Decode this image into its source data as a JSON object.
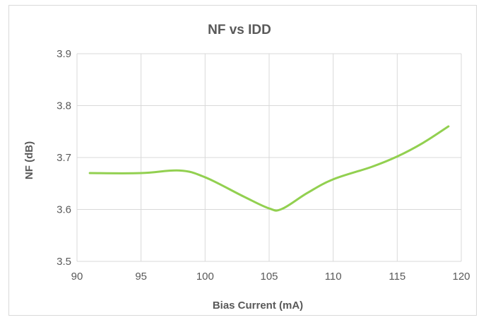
{
  "chart_data": {
    "type": "line",
    "title": "NF vs IDD",
    "xlabel": "Bias Current (mA)",
    "ylabel": "NF (dB)",
    "xlim": [
      90,
      120
    ],
    "ylim": [
      3.5,
      3.9
    ],
    "x_ticks": [
      90,
      95,
      100,
      105,
      110,
      115,
      120
    ],
    "y_ticks": [
      3.5,
      3.6,
      3.7,
      3.8,
      3.9
    ],
    "x_tick_labels": [
      "90",
      "95",
      "100",
      "105",
      "110",
      "115",
      "120"
    ],
    "y_tick_labels": [
      "3.5",
      "3.6",
      "3.7",
      "3.8",
      "3.9"
    ],
    "grid": true,
    "smooth": true,
    "line_color": "#92d050",
    "grid_color": "#d9d9d9",
    "series": [
      {
        "x": [
          91,
          95,
          98,
          100,
          103,
          105,
          106,
          108,
          110,
          113,
          115,
          117,
          119
        ],
        "values": [
          3.67,
          3.67,
          3.675,
          3.662,
          3.625,
          3.602,
          3.601,
          3.632,
          3.658,
          3.682,
          3.702,
          3.728,
          3.76
        ]
      }
    ]
  }
}
